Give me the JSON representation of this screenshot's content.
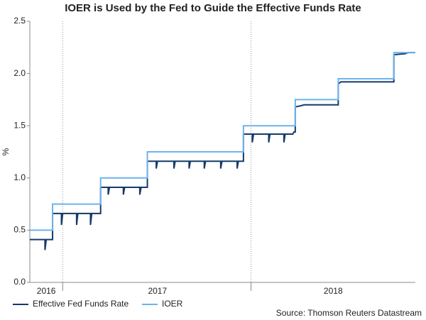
{
  "chart_data": {
    "type": "line",
    "title": "IOER is Used by the Fed to Guide the Effective Funds Rate",
    "y_label": "%",
    "source": "Source: Thomson Reuters Datastream",
    "xlim": [
      2015.85,
      2018.9
    ],
    "xticks": [
      {
        "value": 2015.98,
        "label": "2016"
      },
      {
        "value": 2016.86,
        "label": "2017"
      },
      {
        "value": 2018.25,
        "label": "2018"
      }
    ],
    "xgrid": [
      2016.11,
      2017.6
    ],
    "ylim": [
      0,
      2.5
    ],
    "yticks": [
      {
        "value": 0,
        "label": "0.0"
      },
      0.5,
      {
        "value": 1,
        "label": "1.0"
      },
      1.5,
      {
        "value": 2,
        "label": "2.0"
      },
      2.5
    ],
    "series": [
      {
        "name": "Effective Fed Funds Rate",
        "color": "#163a6a",
        "x": [
          2015.85,
          2015.97,
          2015.97,
          2015.98,
          2016.03,
          2016.03,
          2016.1,
          2016.1,
          2016.11,
          2016.22,
          2016.22,
          2016.23,
          2016.33,
          2016.33,
          2016.34,
          2016.41,
          2016.41,
          2016.47,
          2016.47,
          2016.48,
          2016.59,
          2016.59,
          2016.6,
          2016.72,
          2016.72,
          2016.73,
          2016.78,
          2016.78,
          2016.85,
          2016.85,
          2016.86,
          2016.99,
          2016.99,
          2017.0,
          2017.11,
          2017.11,
          2017.12,
          2017.23,
          2017.23,
          2017.24,
          2017.36,
          2017.36,
          2017.37,
          2017.49,
          2017.49,
          2017.5,
          2017.54,
          2017.54,
          2017.61,
          2017.61,
          2017.62,
          2017.74,
          2017.74,
          2017.75,
          2017.86,
          2017.86,
          2017.87,
          2017.93,
          2017.94,
          2017.95,
          2017.95,
          2017.99,
          2018.02,
          2018.29,
          2018.29,
          2018.31,
          2018.73,
          2018.73,
          2018.82,
          2018.84,
          2018.9
        ],
        "values": [
          0.41,
          0.41,
          0.31,
          0.41,
          0.41,
          0.66,
          0.66,
          0.55,
          0.66,
          0.66,
          0.55,
          0.66,
          0.66,
          0.55,
          0.66,
          0.66,
          0.91,
          0.91,
          0.84,
          0.91,
          0.91,
          0.84,
          0.91,
          0.91,
          0.84,
          0.91,
          0.91,
          1.16,
          1.16,
          1.09,
          1.16,
          1.16,
          1.09,
          1.16,
          1.16,
          1.09,
          1.16,
          1.16,
          1.09,
          1.16,
          1.16,
          1.09,
          1.16,
          1.16,
          1.09,
          1.16,
          1.16,
          1.42,
          1.42,
          1.34,
          1.42,
          1.42,
          1.34,
          1.42,
          1.42,
          1.34,
          1.42,
          1.42,
          1.44,
          1.44,
          1.68,
          1.69,
          1.7,
          1.7,
          1.9,
          1.92,
          1.92,
          2.18,
          2.19,
          2.2,
          2.2
        ]
      },
      {
        "name": "IOER",
        "color": "#6db3ec",
        "x": [
          2015.85,
          2016.03,
          2016.03,
          2016.41,
          2016.41,
          2016.78,
          2016.78,
          2017.54,
          2017.54,
          2017.95,
          2017.95,
          2018.29,
          2018.29,
          2018.73,
          2018.73,
          2018.9
        ],
        "values": [
          0.5,
          0.5,
          0.75,
          0.75,
          1.0,
          1.0,
          1.25,
          1.25,
          1.5,
          1.5,
          1.75,
          1.75,
          1.95,
          1.95,
          2.2,
          2.2
        ]
      }
    ]
  }
}
